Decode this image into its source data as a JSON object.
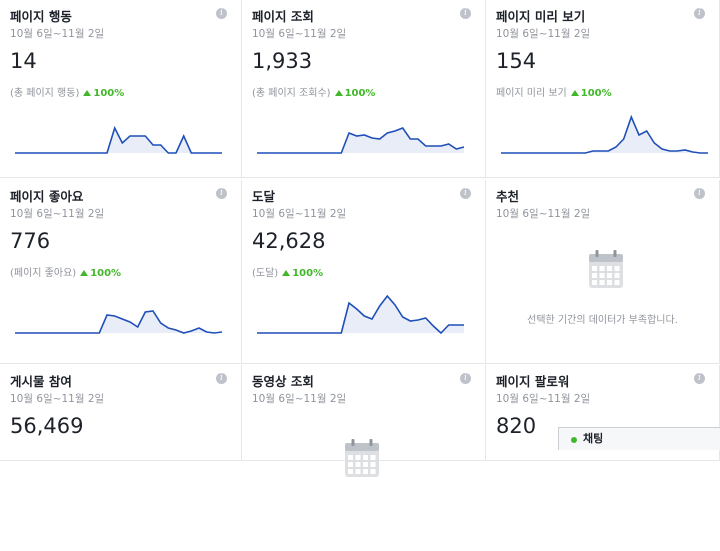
{
  "cards": [
    {
      "title": "페이지 행동",
      "date_range": "10월 6일~11월 2일",
      "value": "14",
      "caption": "(총 페이지 행동)",
      "change": "100%",
      "sparkline": [
        0,
        0,
        0,
        0,
        0,
        0,
        0,
        0,
        0,
        0,
        0,
        0,
        0,
        25,
        10,
        17,
        17,
        17,
        8,
        8,
        0,
        0,
        17,
        0,
        0,
        0,
        0,
        0
      ]
    },
    {
      "title": "페이지 조회",
      "date_range": "10월 6일~11월 2일",
      "value": "1,933",
      "caption": "(총 페이지 조회수)",
      "change": "100%",
      "sparkline": [
        0,
        0,
        0,
        0,
        0,
        0,
        0,
        0,
        0,
        0,
        0,
        0,
        20,
        17,
        18,
        15,
        14,
        20,
        22,
        25,
        14,
        14,
        7,
        7,
        7,
        9,
        4,
        6
      ]
    },
    {
      "title": "페이지 미리 보기",
      "date_range": "10월 6일~11월 2일",
      "value": "154",
      "caption": "페이지 미리 보기",
      "change": "100%",
      "sparkline": [
        0,
        0,
        0,
        0,
        0,
        0,
        0,
        0,
        0,
        0,
        0,
        0,
        2,
        2,
        2,
        6,
        14,
        36,
        18,
        22,
        10,
        4,
        2,
        2,
        3,
        1,
        0,
        0
      ]
    },
    {
      "title": "페이지 좋아요",
      "date_range": "10월 6일~11월 2일",
      "value": "776",
      "caption": "(페이지 좋아요)",
      "change": "100%",
      "sparkline": [
        0,
        0,
        0,
        0,
        0,
        0,
        0,
        0,
        0,
        0,
        0,
        0,
        18,
        17,
        14,
        11,
        6,
        21,
        22,
        10,
        5,
        3,
        0,
        2,
        5,
        1,
        0,
        1
      ]
    },
    {
      "title": "도달",
      "date_range": "10월 6일~11월 2일",
      "value": "42,628",
      "caption": "(도달)",
      "change": "100%",
      "sparkline": [
        0,
        0,
        0,
        0,
        0,
        0,
        0,
        0,
        0,
        0,
        0,
        0,
        30,
        24,
        17,
        14,
        27,
        37,
        28,
        16,
        12,
        13,
        15,
        7,
        0,
        8,
        8,
        8
      ]
    },
    {
      "title": "추천",
      "date_range": "10월 6일~11월 2일",
      "message": "선택한 기간의 데이터가 부족합니다."
    },
    {
      "title": "게시물 참여",
      "date_range": "10월 6일~11월 2일",
      "value": "56,469"
    },
    {
      "title": "동영상 조회",
      "date_range": "10월 6일~11월 2일",
      "icon": true
    },
    {
      "title": "페이지 팔로워",
      "date_range": "10월 6일~11월 2일",
      "value": "820"
    }
  ],
  "chat": {
    "label": "채팅"
  }
}
